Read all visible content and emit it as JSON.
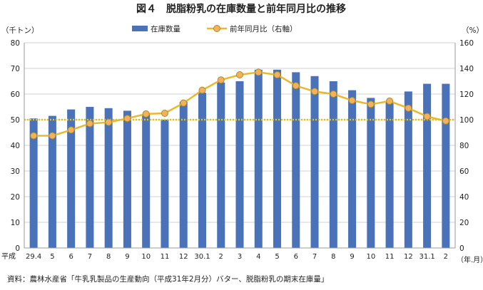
{
  "chart_data": {
    "type": "bar+line",
    "title": "図４　脱脂粉乳の在庫数量と前年同月比の推移",
    "left_unit": "（千トン）",
    "right_unit": "（%）",
    "x_axis_unit": "（年.月）",
    "x_prefix": "平成",
    "categories": [
      "29.4",
      "5",
      "6",
      "7",
      "8",
      "9",
      "10",
      "11",
      "12",
      "30.1",
      "2",
      "3",
      "4",
      "5",
      "6",
      "7",
      "8",
      "9",
      "10",
      "11",
      "12",
      "31.1",
      "2"
    ],
    "left_axis": {
      "min": 0,
      "max": 80,
      "step": 10,
      "ticks": [
        "0",
        "10",
        "20",
        "30",
        "40",
        "50",
        "60",
        "70",
        "80"
      ]
    },
    "right_axis": {
      "min": 0,
      "max": 160,
      "step": 20,
      "ticks": [
        "0",
        "20",
        "40",
        "60",
        "80",
        "100",
        "120",
        "140",
        "160"
      ]
    },
    "series": [
      {
        "name": "在庫数量",
        "type": "bar",
        "axis": "left",
        "color": "#4a72b8",
        "values": [
          50.5,
          51.5,
          54,
          55,
          54.5,
          53.5,
          52,
          50,
          57,
          60.5,
          64.5,
          65,
          69.5,
          69.5,
          68.5,
          67,
          65,
          61.5,
          58.5,
          57,
          61,
          64,
          64
        ]
      },
      {
        "name": "前年同月比（右軸）",
        "type": "line",
        "axis": "right",
        "color": "#e8b92e",
        "marker_fill": "#f2b25d",
        "values": [
          87.5,
          87.5,
          92,
          97,
          98,
          101,
          104.5,
          105,
          113,
          123,
          131,
          135,
          137,
          135,
          126.5,
          122,
          120,
          115,
          112,
          114.5,
          109,
          102.5,
          99
        ]
      }
    ],
    "reference_line": {
      "axis": "right",
      "value": 100,
      "color": "#e6c200",
      "style": "dotted"
    },
    "grid": true,
    "legend": "top-center"
  },
  "source_note": "資料：農林水産省「牛乳乳製品の生産動向（平成31年2月分）バター、脱脂粉乳の期末在庫量」"
}
